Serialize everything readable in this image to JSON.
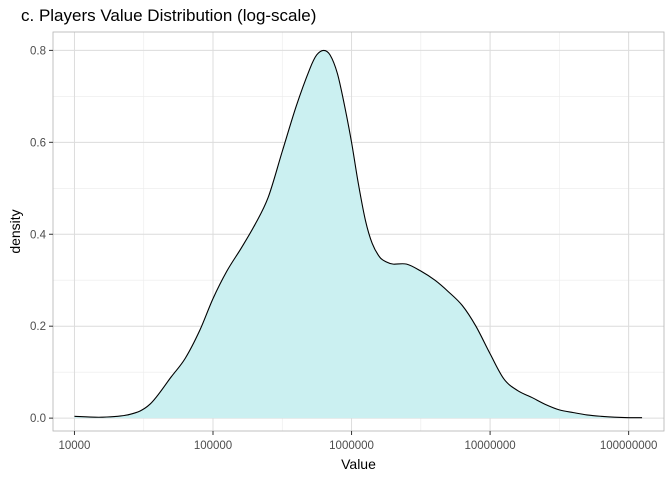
{
  "chart_data": {
    "type": "area",
    "title": "c. Players Value Distribution (log-scale)",
    "xlabel": "Value",
    "ylabel": "density",
    "x_scale": "log10",
    "xlim": [
      7000,
      180000000
    ],
    "ylim": [
      -0.028,
      0.84
    ],
    "x_ticks": [
      10000,
      100000,
      1000000,
      10000000,
      100000000
    ],
    "x_tick_labels": [
      "10000",
      "100000",
      "1000000",
      "10000000",
      "100000000"
    ],
    "y_ticks": [
      0.0,
      0.2,
      0.4,
      0.6,
      0.8
    ],
    "y_tick_labels": [
      "0.0",
      "0.2",
      "0.4",
      "0.6",
      "0.8"
    ],
    "grid": true,
    "fill_color": "#cbf0f1",
    "line_color": "#000000",
    "series": [
      {
        "x": [
          10000,
          15800,
          25000,
          35000,
          50000,
          63000,
          80000,
          100000,
          126000,
          160000,
          200000,
          250000,
          316000,
          400000,
          500000,
          560000,
          630000,
          700000,
          790000,
          890000,
          1000000,
          1120000,
          1260000,
          1410000,
          1600000,
          1780000,
          2000000,
          2500000,
          3160000,
          4000000,
          5000000,
          6300000,
          7900000,
          10000000,
          12600000,
          15800000,
          20000000,
          25000000,
          31600000,
          40000000,
          50000000,
          63000000,
          79000000,
          100000000,
          125000000
        ],
        "y": [
          0.004,
          0.002,
          0.008,
          0.03,
          0.09,
          0.13,
          0.19,
          0.26,
          0.32,
          0.37,
          0.42,
          0.48,
          0.58,
          0.68,
          0.76,
          0.79,
          0.8,
          0.79,
          0.75,
          0.68,
          0.6,
          0.51,
          0.43,
          0.38,
          0.35,
          0.34,
          0.335,
          0.335,
          0.32,
          0.3,
          0.275,
          0.245,
          0.2,
          0.14,
          0.085,
          0.06,
          0.045,
          0.03,
          0.018,
          0.012,
          0.007,
          0.004,
          0.002,
          0.001,
          0.001
        ]
      }
    ]
  }
}
